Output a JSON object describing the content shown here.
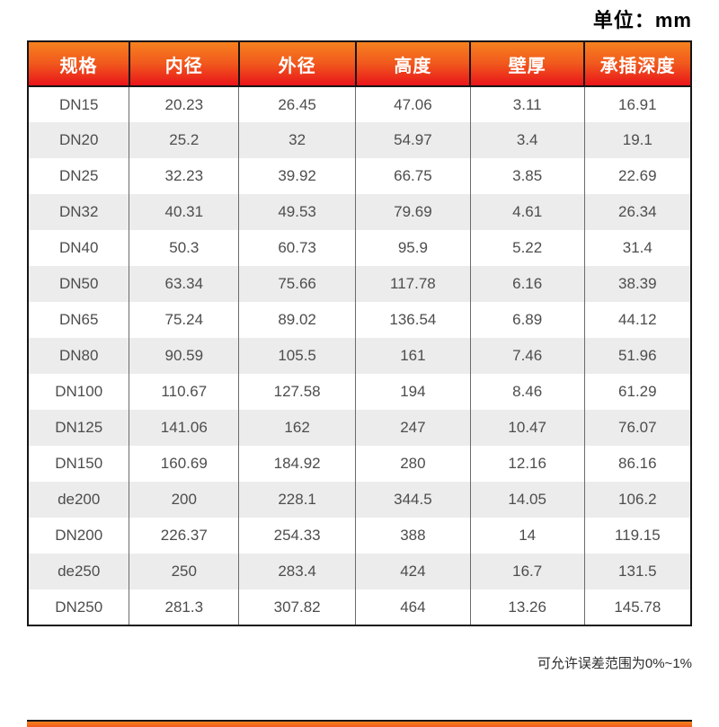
{
  "unit_label": "单位：mm",
  "note": "可允许误差范围为0%~1%",
  "table": {
    "headers": [
      "规格",
      "内径",
      "外径",
      "高度",
      "壁厚",
      "承插深度"
    ],
    "col_widths_pct": [
      15.3,
      16.5,
      17.6,
      17.3,
      17.2,
      16.1
    ],
    "rows": [
      [
        "DN15",
        "20.23",
        "26.45",
        "47.06",
        "3.11",
        "16.91"
      ],
      [
        "DN20",
        "25.2",
        "32",
        "54.97",
        "3.4",
        "19.1"
      ],
      [
        "DN25",
        "32.23",
        "39.92",
        "66.75",
        "3.85",
        "22.69"
      ],
      [
        "DN32",
        "40.31",
        "49.53",
        "79.69",
        "4.61",
        "26.34"
      ],
      [
        "DN40",
        "50.3",
        "60.73",
        "95.9",
        "5.22",
        "31.4"
      ],
      [
        "DN50",
        "63.34",
        "75.66",
        "117.78",
        "6.16",
        "38.39"
      ],
      [
        "DN65",
        "75.24",
        "89.02",
        "136.54",
        "6.89",
        "44.12"
      ],
      [
        "DN80",
        "90.59",
        "105.5",
        "161",
        "7.46",
        "51.96"
      ],
      [
        "DN100",
        "110.67",
        "127.58",
        "194",
        "8.46",
        "61.29"
      ],
      [
        "DN125",
        "141.06",
        "162",
        "247",
        "10.47",
        "76.07"
      ],
      [
        "DN150",
        "160.69",
        "184.92",
        "280",
        "12.16",
        "86.16"
      ],
      [
        "de200",
        "200",
        "228.1",
        "344.5",
        "14.05",
        "106.2"
      ],
      [
        "DN200",
        "226.37",
        "254.33",
        "388",
        "14",
        "119.15"
      ],
      [
        "de250",
        "250",
        "283.4",
        "424",
        "16.7",
        "131.5"
      ],
      [
        "DN250",
        "281.3",
        "307.82",
        "464",
        "13.26",
        "145.78"
      ]
    ]
  },
  "colors": {
    "header_gradient_top": "#f6811f",
    "header_gradient_bottom": "#e9151a",
    "header_text": "#ffffff",
    "row_alt_background": "#ececec",
    "body_text": "#4d4d4d",
    "border_dark": "#161616"
  }
}
